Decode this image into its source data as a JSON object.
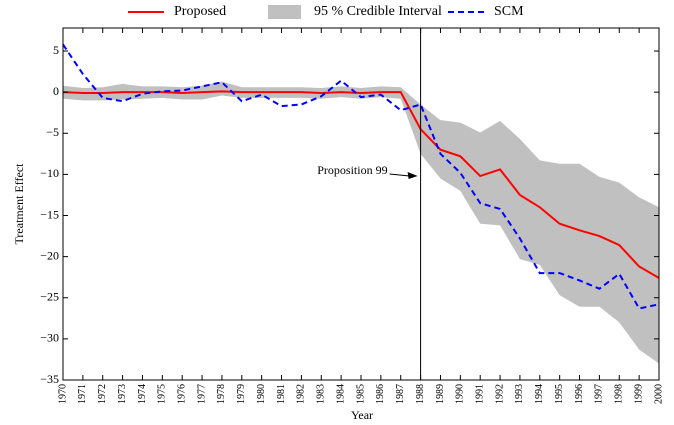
{
  "chart_data": {
    "type": "line",
    "x_label": "Year",
    "y_label": "Treatment Effect",
    "x": [
      1970,
      1971,
      1972,
      1973,
      1974,
      1975,
      1976,
      1977,
      1978,
      1979,
      1980,
      1981,
      1982,
      1983,
      1984,
      1985,
      1986,
      1987,
      1988,
      1989,
      1990,
      1991,
      1992,
      1993,
      1994,
      1995,
      1996,
      1997,
      1998,
      1999,
      2000
    ],
    "series": [
      {
        "name": "Proposed",
        "color": "#ff0000",
        "style": "solid",
        "values": [
          0,
          -0.1,
          -0.1,
          0,
          0,
          0,
          -0.1,
          0,
          0.1,
          0,
          0,
          0,
          0,
          -0.1,
          0,
          -0.1,
          0,
          0,
          -4.5,
          -7,
          -7.8,
          -10.2,
          -9.4,
          -12.5,
          -14,
          -16,
          -16.8,
          -17.5,
          -18.6,
          -21.2,
          -22.6
        ]
      },
      {
        "name": "95 % Credible Interval",
        "color": "#c0c0c0",
        "style": "band",
        "upper": [
          0.8,
          0.5,
          0.6,
          1,
          0.7,
          0.7,
          0.6,
          0.8,
          1.3,
          0.6,
          0.6,
          0.6,
          0.6,
          0.5,
          0.7,
          0.5,
          0.7,
          0.6,
          -1.5,
          -3.4,
          -3.7,
          -4.9,
          -3.5,
          -5.7,
          -8.3,
          -8.7,
          -8.7,
          -10.3,
          -11,
          -12.8,
          -14
        ],
        "lower": [
          -0.8,
          -1,
          -1,
          -0.9,
          -0.8,
          -0.7,
          -0.9,
          -0.9,
          -0.4,
          -0.7,
          -0.7,
          -0.7,
          -0.7,
          -0.8,
          -0.6,
          -0.8,
          -0.6,
          -0.8,
          -7.5,
          -10.5,
          -12,
          -16,
          -16.2,
          -20.3,
          -21,
          -24.7,
          -26.1,
          -26.1,
          -28,
          -31.3,
          -33
        ]
      },
      {
        "name": "SCM",
        "color": "#0000ff",
        "style": "dashed",
        "values": [
          5.8,
          2.2,
          -0.7,
          -1.1,
          -0.2,
          0.1,
          0.2,
          0.7,
          1.2,
          -1.1,
          -0.3,
          -1.7,
          -1.5,
          -0.5,
          1.4,
          -0.6,
          -0.3,
          -2.2,
          -1.5,
          -7.5,
          -9.8,
          -13.5,
          -14.2,
          -17.8,
          -22,
          -22,
          -22.9,
          -23.9,
          -22.1,
          -26.3,
          -25.8
        ]
      }
    ],
    "xlim": [
      1970,
      2000
    ],
    "ylim": [
      -35,
      7.8
    ],
    "xticks": [
      1970,
      1971,
      1972,
      1973,
      1974,
      1975,
      1976,
      1977,
      1978,
      1979,
      1980,
      1981,
      1982,
      1983,
      1984,
      1985,
      1986,
      1987,
      1988,
      1989,
      1990,
      1991,
      1992,
      1993,
      1994,
      1995,
      1996,
      1997,
      1998,
      1999,
      2000
    ],
    "yticks": [
      {
        "value": -35,
        "label": "−35"
      },
      {
        "value": -30,
        "label": "−30"
      },
      {
        "value": -25,
        "label": "−25"
      },
      {
        "value": -20,
        "label": "−20"
      },
      {
        "value": -15,
        "label": "−15"
      },
      {
        "value": -10,
        "label": "−10"
      },
      {
        "value": -5,
        "label": "−5"
      },
      0,
      5
    ],
    "vline": 1988,
    "annotation": {
      "text": "Proposition 99",
      "x": 1988,
      "y": -10.2
    },
    "legend": "top"
  }
}
